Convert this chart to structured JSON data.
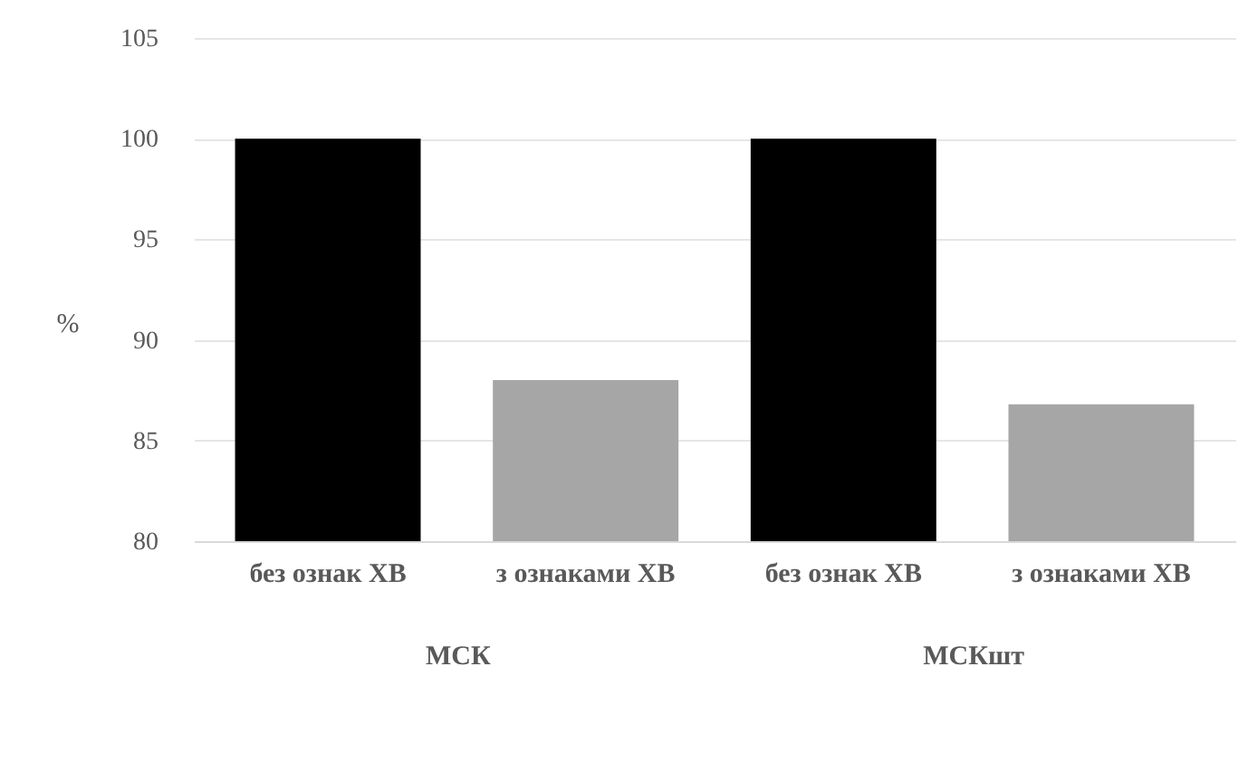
{
  "chart_data": {
    "type": "bar",
    "ylabel": "%",
    "categories": [
      "без ознак ХВ",
      "з ознаками ХВ",
      "без ознак ХВ",
      "з ознаками ХВ"
    ],
    "values": [
      100,
      88,
      100,
      86.8
    ],
    "colors": [
      "#000000",
      "#a6a6a6",
      "#000000",
      "#a6a6a6"
    ],
    "ylim": [
      80,
      105
    ],
    "yticks": [
      80,
      85,
      90,
      95,
      100,
      105
    ],
    "grid": "y",
    "annotations": [
      "МСК",
      "МСКшт"
    ]
  }
}
